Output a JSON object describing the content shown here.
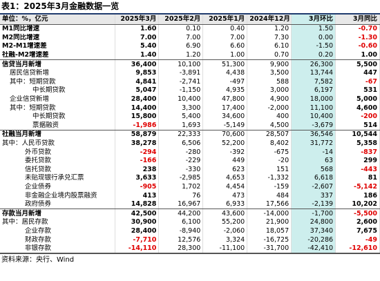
{
  "title": "表1：2025年3月金融数据一览",
  "table": {
    "header": [
      "单位：%，亿元",
      "2025年3月",
      "2025年2月",
      "2025年1月",
      "2024年12月",
      "3月环比",
      "3月同比"
    ],
    "rows": [
      [
        "M1同比增速",
        "1.60",
        "0.10",
        "0.40",
        "1.20",
        "1.50",
        "-0.70"
      ],
      [
        "M2同比增速",
        "7.00",
        "7.00",
        "7.00",
        "7.30",
        "0.00",
        "-1.30"
      ],
      [
        "M2-M1增速差",
        "5.40",
        "6.90",
        "6.60",
        "6.10",
        "-1.50",
        "-0.60"
      ],
      [
        "社融-M2增速差",
        "1.40",
        "1.20",
        "1.00",
        "0.70",
        "0.20",
        "1.00"
      ],
      [
        "信贷当月新增",
        "36,400",
        "10,100",
        "51,300",
        "9,900",
        "26,300",
        "5,500"
      ],
      [
        "居民信贷新增",
        "9,853",
        "-3,891",
        "4,438",
        "3,500",
        "13,744",
        "447"
      ],
      [
        "其中：短期贷款",
        "4,841",
        "-2,741",
        "-497",
        "588",
        "7,582",
        "-67"
      ],
      [
        "中长期贷款",
        "5,047",
        "-1,150",
        "4,935",
        "3,000",
        "6,197",
        "531"
      ],
      [
        "企业信贷新增",
        "28,400",
        "10,400",
        "47,800",
        "4,900",
        "18,000",
        "5,000"
      ],
      [
        "其中：短期贷款",
        "14,400",
        "3,300",
        "17,400",
        "-2,000",
        "11,100",
        "4,600"
      ],
      [
        "中长期贷款",
        "15,800",
        "5,400",
        "34,600",
        "400",
        "10,400",
        "-200"
      ],
      [
        "票据融资",
        "-1,986",
        "1,693",
        "-5,149",
        "4,500",
        "-3,679",
        "514"
      ],
      [
        "社融当月新增",
        "58,879",
        "22,333",
        "70,600",
        "28,507",
        "36,546",
        "10,544"
      ],
      [
        "其中：人民币贷款",
        "38,278",
        "6,506",
        "52,200",
        "8,402",
        "31,772",
        "5,358"
      ],
      [
        "外币贷款",
        "-294",
        "-280",
        "-392",
        "-675",
        "-14",
        "-837"
      ],
      [
        "委托贷款",
        "-166",
        "-229",
        "449",
        "-20",
        "63",
        "299"
      ],
      [
        "信托贷款",
        "238",
        "-330",
        "623",
        "151",
        "568",
        "-443"
      ],
      [
        "未贴现银行承兑汇票",
        "3,633",
        "-2,985",
        "4,653",
        "-1,332",
        "6,618",
        "81"
      ],
      [
        "企业债券",
        "-905",
        "1,702",
        "4,454",
        "-159",
        "-2,607",
        "-5,142"
      ],
      [
        "非金融企业境内股票融资",
        "413",
        "76",
        "473",
        "484",
        "337",
        "186"
      ],
      [
        "政府债券",
        "14,828",
        "16,967",
        "6,933",
        "17,566",
        "-2,139",
        "10,202"
      ],
      [
        "存款当月新增",
        "42,500",
        "44,200",
        "43,600",
        "-14,000",
        "-1,700",
        "-5,500"
      ],
      [
        "其中：居民存款",
        "30,900",
        "6,100",
        "55,200",
        "21,900",
        "24,800",
        "2,600"
      ],
      [
        "企业存款",
        "28,400",
        "-8,940",
        "-2,060",
        "18,057",
        "37,340",
        "7,675"
      ],
      [
        "财政存款",
        "-7,710",
        "12,576",
        "3,324",
        "-16,725",
        "-20,286",
        "-49"
      ],
      [
        "非银存款",
        "-14,110",
        "28,300",
        "-11,100",
        "-31,700",
        "-42,410",
        "-12,610"
      ]
    ]
  },
  "source": "资料来源：央行、Wind"
}
